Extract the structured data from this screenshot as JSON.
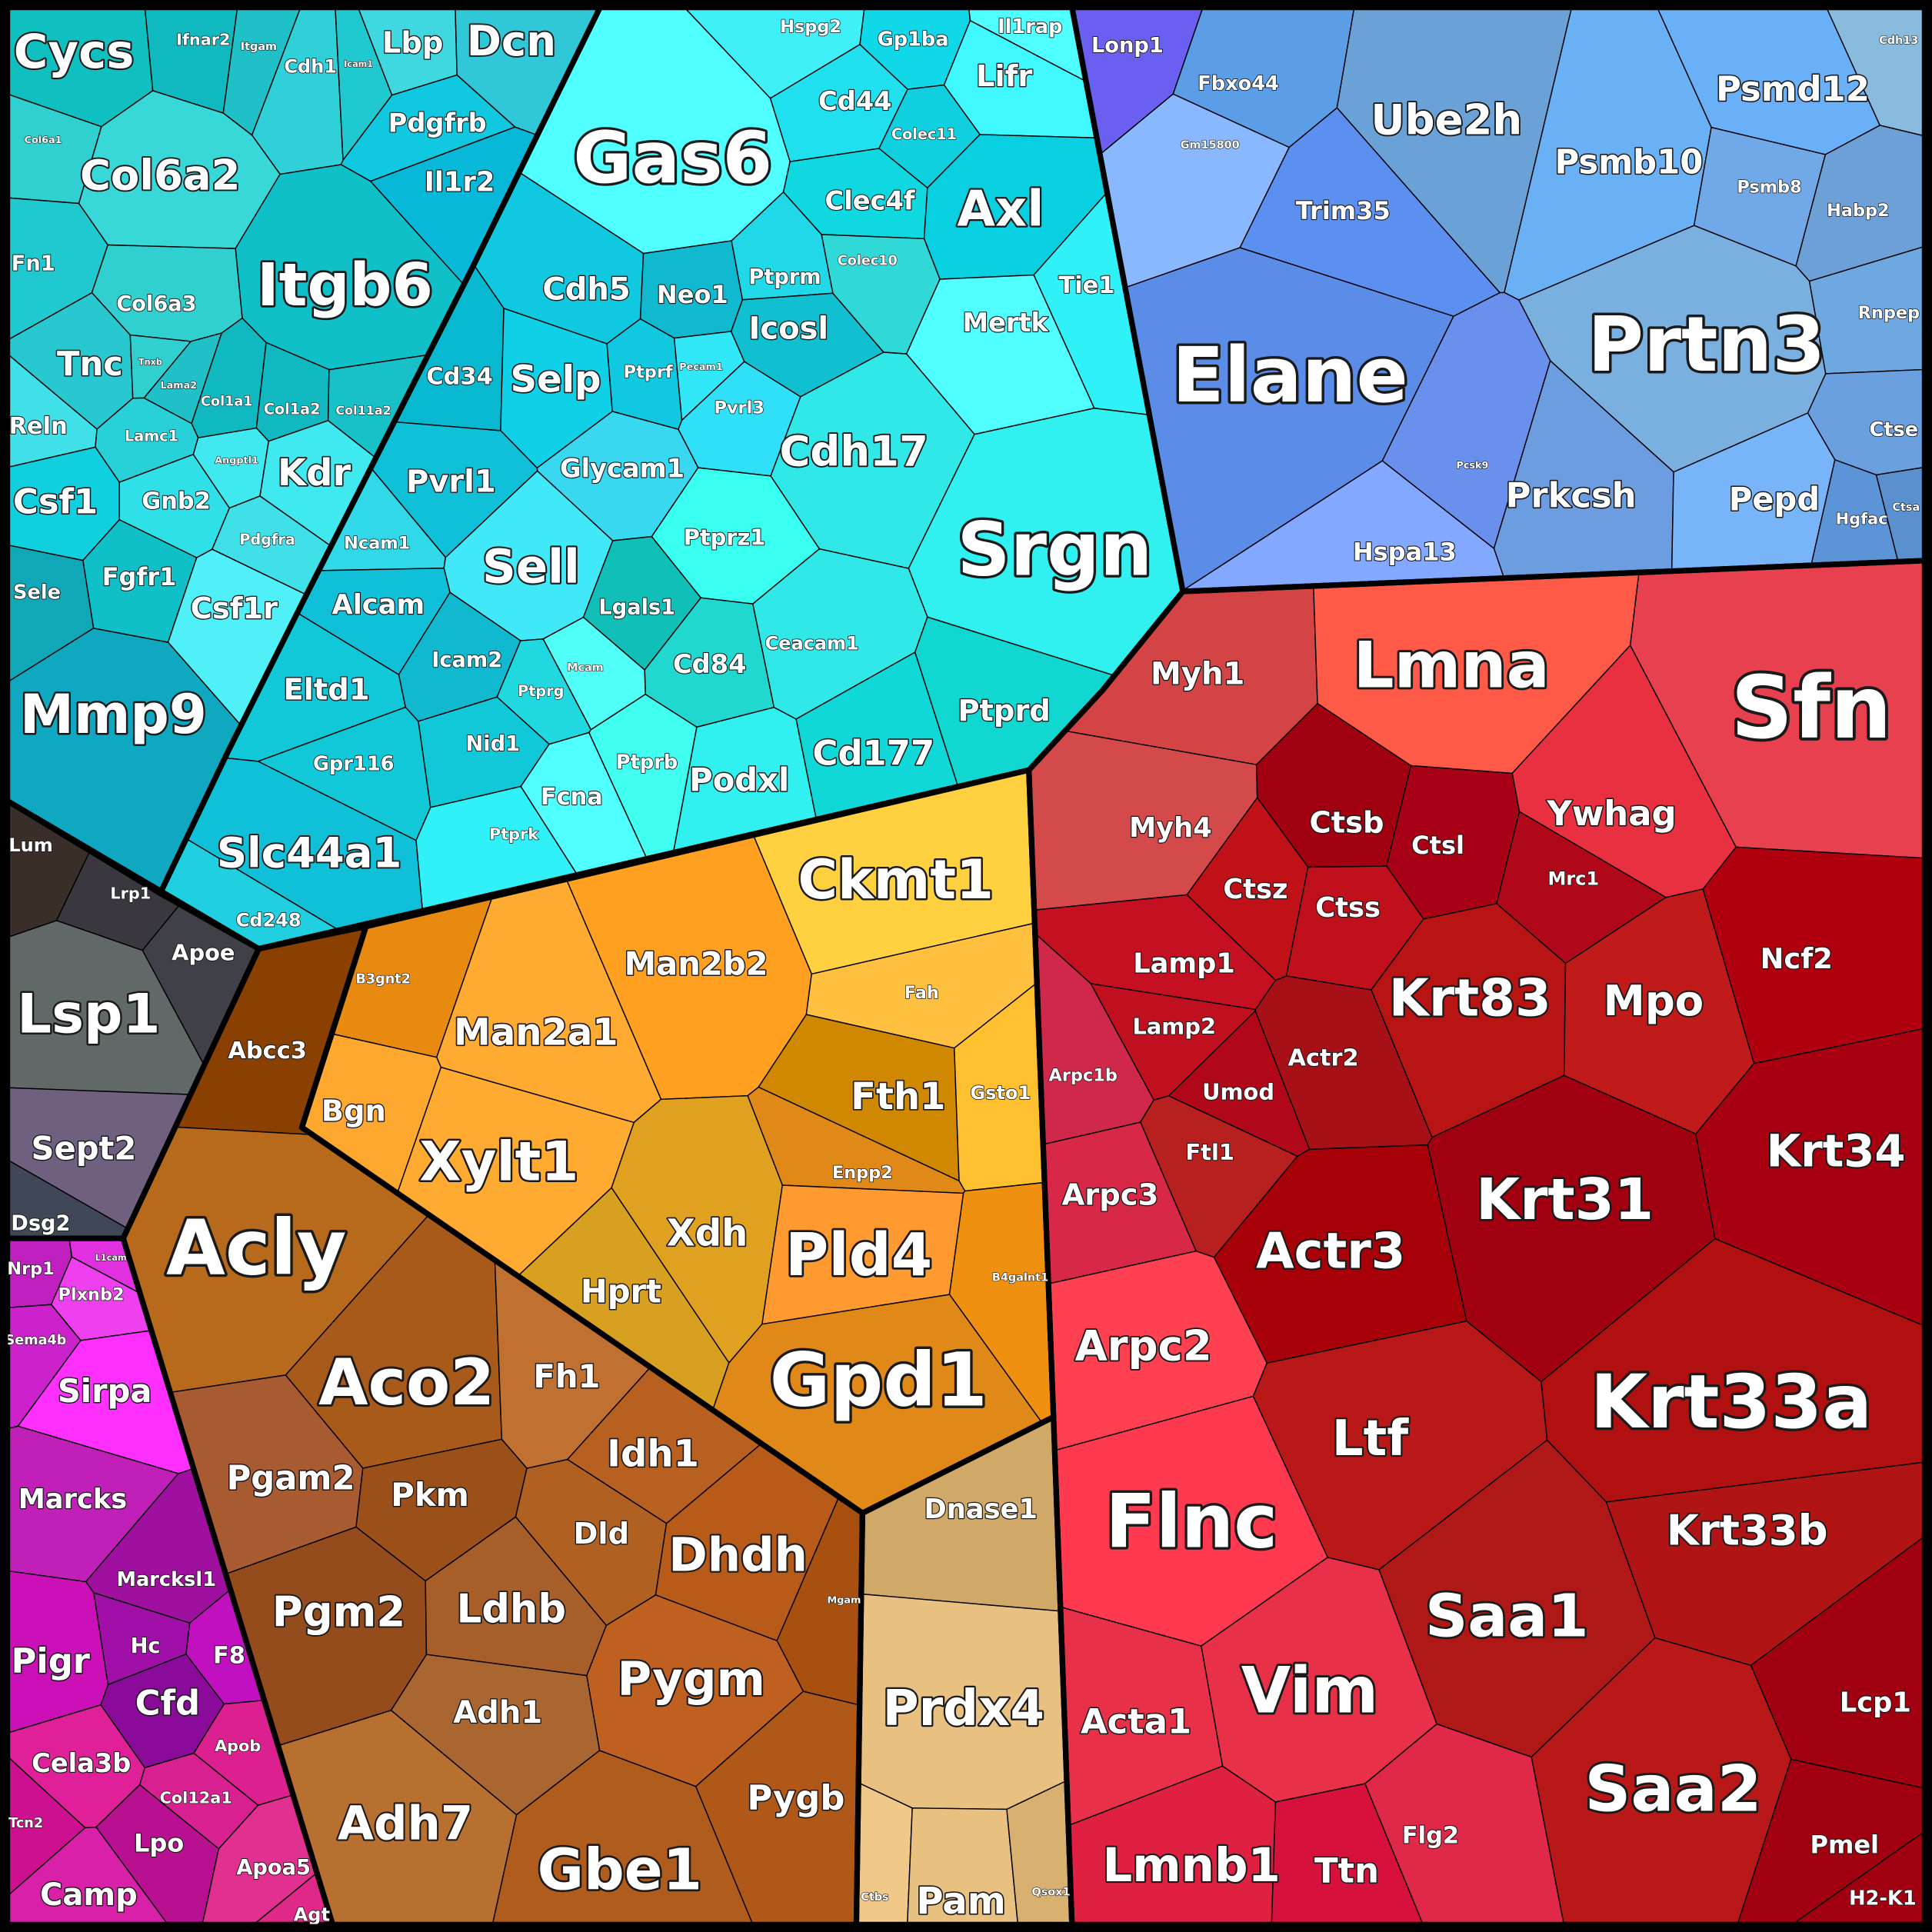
{
  "groups": [
    {
      "labels": [
        "Cycs",
        "Ifnar2",
        "Itgam",
        "Cdh1",
        "Icam1",
        "Lbp",
        "Dcn",
        "Pdgfrb",
        "Il1r2",
        "Col6a1",
        "Col6a2",
        "Itgb6",
        "Fn1",
        "Col6a3",
        "Tnc",
        "Tnxb",
        "Lama2",
        "Col1a1",
        "Col1a2",
        "Col11a2",
        "Reln",
        "Lamc1",
        "Csf1",
        "Gnb2",
        "Angptl1",
        "Kdr",
        "Pdgfra",
        "Fgfr1",
        "Csf1r",
        "Sele",
        "Mmp9"
      ]
    },
    {
      "labels": [
        "Hspg2",
        "Gp1ba",
        "Il1rap",
        "Gas6",
        "Cd44",
        "Lifr",
        "Colec11",
        "Clec4f",
        "Axl",
        "Colec10",
        "Tie1",
        "Mertk",
        "Cdh5",
        "Neo1",
        "Ptprm",
        "Icosl",
        "Cd34",
        "Selp",
        "Ptprf",
        "Pecam1",
        "Pvrl3",
        "Cdh17",
        "Srgn",
        "Glycam1",
        "Pvrl1",
        "Ncam1",
        "Ptprz1",
        "Sell",
        "Lgals1",
        "Alcam",
        "Cd84",
        "Ceacam1",
        "Icam2",
        "Mcam",
        "Ptprg",
        "Eltd1",
        "Ptprd",
        "Nid1",
        "Cd177",
        "Gpr116",
        "Ptprb",
        "Podxl",
        "Fcna",
        "Ptprk",
        "Slc44a1",
        "Cd248"
      ]
    },
    {
      "labels": [
        "Lonp1",
        "Fbxo44",
        "Ube2h",
        "Psmd12",
        "Cdh13",
        "Gm15800",
        "Psmb10",
        "Psmb8",
        "Habp2",
        "Trim35",
        "Elane",
        "Prtn3",
        "Rnpep",
        "Pcsk9",
        "Prkcsh",
        "Ctse",
        "Pepd",
        "Hgfac",
        "Ctsa",
        "Hspa13"
      ]
    },
    {
      "labels": [
        "Myh1",
        "Lmna",
        "Sfn",
        "Myh4",
        "Ywhag",
        "Ctsb",
        "Ctsl",
        "Ctsz",
        "Ctss",
        "Mrc1",
        "Lamp1",
        "Ncf2",
        "Krt83",
        "Mpo",
        "Lamp2",
        "Actr2",
        "Arpc1b",
        "Umod",
        "Krt34",
        "Ftl1",
        "Krt31",
        "Arpc3",
        "Actr3",
        "Arpc2",
        "Krt33a",
        "Ltf",
        "Flnc",
        "Krt33b",
        "Saa1",
        "Vim",
        "Lcp1",
        "Acta1",
        "Saa2",
        "Pmel",
        "Lmnb1",
        "Ttn",
        "Flg2",
        "H2-K1"
      ]
    },
    {
      "labels": [
        "Ckmt1",
        "B3gnt2",
        "Man2b2",
        "Fah",
        "Man2a1",
        "Fth1",
        "Gsto1",
        "Bgn",
        "Xylt1",
        "Enpp2",
        "Xdh",
        "Pld4",
        "B4galnt1",
        "Hprt",
        "Gpd1"
      ]
    },
    {
      "labels": [
        "Abcc3",
        "Acly",
        "Aco2",
        "Fh1",
        "Idh1",
        "Pgam2",
        "Pkm",
        "Dld",
        "Dhdh",
        "Mgam",
        "Pgm2",
        "Ldhb",
        "Pygm",
        "Adh1",
        "Pygb",
        "Adh7",
        "Gbe1"
      ]
    },
    {
      "labels": [
        "Dnase1",
        "Prdx4",
        "Ctbs",
        "Pam",
        "Qsox1"
      ]
    },
    {
      "labels": [
        "Lum",
        "Lrp1",
        "Apoe",
        "Lsp1",
        "Sept2",
        "Dsg2"
      ]
    },
    {
      "labels": [
        "Nrp1",
        "L1cam",
        "Plxnb2",
        "Sema4b",
        "Sirpa",
        "Marcks",
        "Marcksl1",
        "Pigr",
        "Hc",
        "F8",
        "Cfd",
        "Cela3b",
        "Apob",
        "Col12a1",
        "Tcn2",
        "Lpo",
        "Apoa5",
        "Camp",
        "Agt"
      ]
    }
  ]
}
